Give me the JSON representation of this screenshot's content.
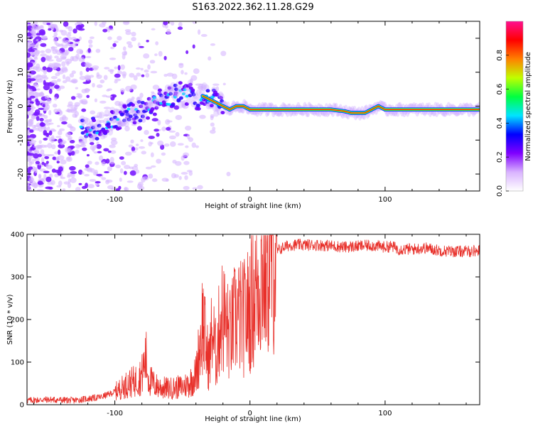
{
  "figure": {
    "title": "S163.2022.362.11.28.G29"
  },
  "chart_data": [
    {
      "type": "heatmap",
      "xlabel": "Height of straight line (km)",
      "ylabel": "Frequency (Hz)",
      "xlim": [
        -165,
        170
      ],
      "ylim": [
        -25,
        25
      ],
      "xticks": [
        -100,
        0,
        100
      ],
      "xtick_labels": [
        "-100",
        "0",
        "100"
      ],
      "yticks": [
        -20,
        -10,
        0,
        10,
        20
      ],
      "ytick_labels": [
        "-20",
        "-10",
        "0",
        "10",
        "20"
      ],
      "grid": false,
      "description_series": [
        {
          "x": [
            -160,
            -140,
            -120,
            -110,
            -100,
            -90,
            -80,
            -70,
            -60,
            -50,
            -45,
            -40,
            -35,
            -30,
            -25,
            -20,
            -15,
            -10,
            -5,
            0,
            10,
            30,
            50,
            60,
            70,
            75,
            80,
            85,
            90,
            95,
            100,
            110,
            120,
            140,
            160,
            170
          ],
          "y": [
            -9,
            -8,
            -7,
            -6,
            -4,
            -2,
            -1,
            1,
            2,
            4,
            4,
            1,
            3,
            2,
            1,
            0,
            -1,
            0,
            0,
            -1,
            -1,
            -1,
            -1,
            -1,
            -1.5,
            -2,
            -2,
            -2,
            -1,
            0,
            -1,
            -1,
            -1,
            -1,
            -1,
            -1
          ]
        }
      ],
      "colorbar": {
        "label": "Normalized spectral amplitude",
        "range": [
          0,
          1
        ],
        "ticks": [
          0.0,
          0.2,
          0.4,
          0.6,
          0.8
        ],
        "tick_labels": [
          "0.0",
          "0.2",
          "0.4",
          "0.6",
          "0.8"
        ],
        "colors": [
          "#ffffff",
          "#d9b3ff",
          "#8000ff",
          "#0000ff",
          "#00e5ff",
          "#00ff40",
          "#c0ff00",
          "#ff8000",
          "#ff0000",
          "#ff1090"
        ]
      }
    },
    {
      "type": "line",
      "xlabel": "Height of straight line (km)",
      "ylabel": "SNR (10 * v/v)",
      "xlim": [
        -165,
        170
      ],
      "ylim": [
        0,
        400
      ],
      "xticks": [
        -100,
        0,
        100
      ],
      "xtick_labels": [
        "-100",
        "0",
        "100"
      ],
      "yticks": [
        0,
        100,
        200,
        300,
        400
      ],
      "ytick_labels": [
        "0",
        "100",
        "200",
        "300",
        "400"
      ],
      "grid": false,
      "color": "#e8302a",
      "series": [
        {
          "x": [
            -165,
            -150,
            -130,
            -120,
            -110,
            -100,
            -95,
            -90,
            -85,
            -80,
            -77,
            -75,
            -70,
            -65,
            -60,
            -55,
            -50,
            -45,
            -40,
            -37,
            -35,
            -32,
            -30,
            -28,
            -25,
            -22,
            -20,
            -15,
            -10,
            -5,
            0,
            5,
            10,
            15,
            20,
            25,
            30,
            40,
            50,
            60,
            70,
            80,
            90,
            100,
            105,
            110,
            120,
            130,
            140,
            150,
            160,
            170
          ],
          "y": [
            10,
            12,
            10,
            14,
            18,
            30,
            40,
            50,
            55,
            70,
            110,
            60,
            45,
            40,
            38,
            40,
            42,
            50,
            70,
            140,
            200,
            120,
            100,
            180,
            110,
            200,
            210,
            160,
            210,
            200,
            230,
            280,
            320,
            340,
            360,
            370,
            375,
            375,
            375,
            373,
            370,
            372,
            374,
            370,
            372,
            365,
            365,
            368,
            362,
            360,
            360,
            362
          ]
        }
      ]
    }
  ]
}
